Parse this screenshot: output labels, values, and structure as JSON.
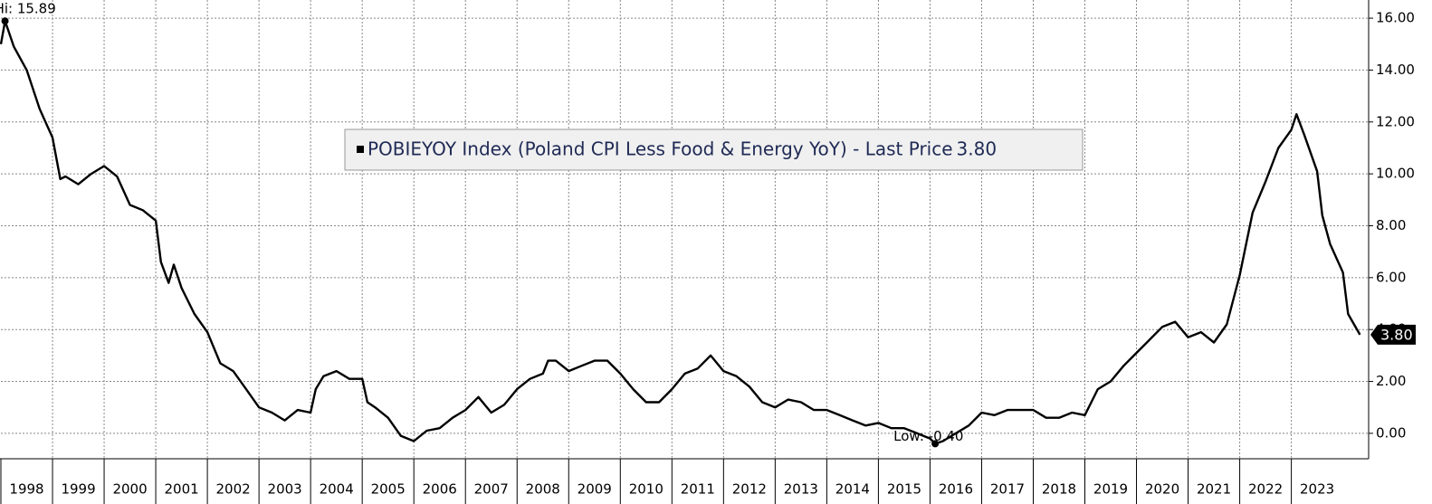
{
  "chart_data": {
    "type": "line",
    "legend_text": "POBIEYOY Index (Poland CPI Less Food & Energy YoY) - Last Price",
    "last_price": {
      "value": 3.8,
      "label": "3.80"
    },
    "annotations": [
      {
        "text": "Hi: 15.89",
        "point": 1
      },
      {
        "text": "Low: -0.40",
        "point": 90
      }
    ],
    "x": [
      1998.0,
      1998.08,
      1998.25,
      1998.5,
      1998.75,
      1999.0,
      1999.15,
      1999.25,
      1999.5,
      1999.75,
      2000.0,
      2000.25,
      2000.5,
      2000.75,
      2001.0,
      2001.1,
      2001.25,
      2001.35,
      2001.5,
      2001.75,
      2002.0,
      2002.25,
      2002.5,
      2002.75,
      2003.0,
      2003.25,
      2003.5,
      2003.75,
      2004.0,
      2004.1,
      2004.25,
      2004.5,
      2004.75,
      2005.0,
      2005.1,
      2005.25,
      2005.5,
      2005.75,
      2006.0,
      2006.25,
      2006.5,
      2006.75,
      2007.0,
      2007.25,
      2007.5,
      2007.75,
      2008.0,
      2008.25,
      2008.5,
      2008.6,
      2008.75,
      2009.0,
      2009.25,
      2009.5,
      2009.75,
      2010.0,
      2010.25,
      2010.5,
      2010.75,
      2011.0,
      2011.25,
      2011.5,
      2011.75,
      2012.0,
      2012.25,
      2012.5,
      2012.75,
      2013.0,
      2013.25,
      2013.5,
      2013.75,
      2014.0,
      2014.25,
      2014.5,
      2014.75,
      2015.0,
      2015.25,
      2015.5,
      2015.75,
      2016.0,
      2016.25,
      2016.5,
      2016.75,
      2017.0,
      2017.25,
      2017.5,
      2017.75,
      2018.0,
      2018.25,
      2018.5,
      2016.1,
      2018.75,
      2019.0,
      2019.25,
      2019.5,
      2019.75,
      2020.0,
      2020.25,
      2020.5,
      2020.75,
      2021.0,
      2021.25,
      2021.5,
      2021.75,
      2022.0,
      2022.25,
      2022.5,
      2022.75,
      2023.0,
      2023.1,
      2023.25,
      2023.5,
      2023.6,
      2023.75,
      2024.0,
      2024.1,
      2024.33
    ],
    "series": [
      {
        "name": "POBIEYOY Index",
        "color": "#000000",
        "values": [
          15.0,
          15.89,
          14.9,
          14.0,
          12.5,
          11.4,
          9.8,
          9.9,
          9.6,
          10.0,
          10.3,
          9.9,
          8.8,
          8.6,
          8.2,
          6.6,
          5.8,
          6.5,
          5.6,
          4.6,
          3.9,
          2.7,
          2.4,
          1.7,
          1.0,
          0.8,
          0.5,
          0.9,
          0.8,
          1.7,
          2.2,
          2.4,
          2.1,
          2.1,
          1.2,
          1.0,
          0.6,
          -0.1,
          -0.3,
          0.1,
          0.2,
          0.6,
          0.9,
          1.4,
          0.8,
          1.1,
          1.7,
          2.1,
          2.3,
          2.8,
          2.8,
          2.4,
          2.6,
          2.8,
          2.8,
          2.3,
          1.7,
          1.2,
          1.2,
          1.7,
          2.3,
          2.5,
          3.0,
          2.4,
          2.2,
          1.8,
          1.2,
          1.0,
          1.3,
          1.2,
          0.9,
          0.9,
          0.7,
          0.5,
          0.3,
          0.4,
          0.2,
          0.2,
          0.0,
          -0.2,
          -0.3,
          0.0,
          0.3,
          0.8,
          0.7,
          0.9,
          0.9,
          0.9,
          0.6,
          0.6,
          -0.4,
          0.8,
          0.7,
          1.7,
          2.0,
          2.6,
          3.1,
          3.6,
          4.1,
          4.3,
          3.7,
          3.9,
          3.5,
          4.2,
          6.1,
          8.5,
          9.7,
          11.0,
          11.7,
          12.3,
          11.5,
          10.1,
          8.4,
          7.3,
          6.2,
          4.6,
          3.8
        ]
      }
    ],
    "xlim": [
      1998.0,
      2024.48
    ],
    "ylim": [
      -0.98,
      16.7
    ],
    "xticks": [
      1998,
      1999,
      2000,
      2001,
      2002,
      2003,
      2004,
      2005,
      2006,
      2007,
      2008,
      2009,
      2010,
      2011,
      2012,
      2013,
      2014,
      2015,
      2016,
      2017,
      2018,
      2019,
      2020,
      2021,
      2022,
      2023
    ],
    "yticks": [
      {
        "value": 0,
        "label": "0.00"
      },
      {
        "value": 2,
        "label": "2.00"
      },
      {
        "value": 4,
        "label": "4.00"
      },
      {
        "value": 6,
        "label": "6.00"
      },
      {
        "value": 8,
        "label": "8.00"
      },
      {
        "value": 10,
        "label": "10.00"
      },
      {
        "value": 12,
        "label": "12.00"
      },
      {
        "value": 14,
        "label": "14.00"
      },
      {
        "value": 16,
        "label": "16.00"
      }
    ],
    "grid": true
  }
}
